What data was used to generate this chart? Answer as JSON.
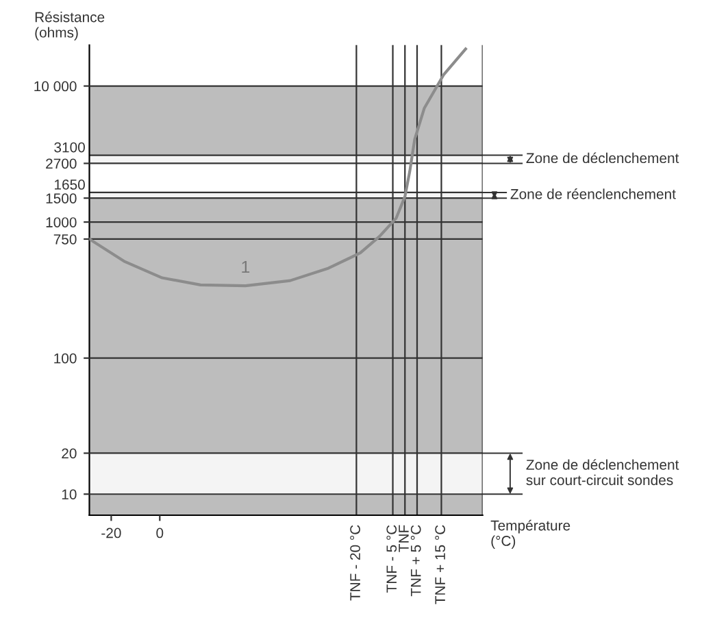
{
  "chart_data": {
    "type": "line",
    "xlabel": "Température\n(°C)",
    "ylabel": "Résistance\n(ohms)",
    "x": [
      -29,
      -14.7,
      1,
      16.8,
      35.3,
      53.7,
      69.5,
      82.6,
      90.5,
      97.4,
      101,
      103,
      105,
      109,
      117,
      126
    ],
    "series": [
      {
        "color": "#8c8c8c",
        "values": [
          750,
          515,
          389,
          345,
          340,
          371,
          458,
          593,
          784,
          1070,
          1540,
          2370,
          4045,
          6890,
          12150,
          18740
        ]
      }
    ],
    "log": "y",
    "xlim": [
      -29,
      133
    ],
    "xticks": [
      -20,
      0
    ],
    "ylim": [
      7,
      20000
    ],
    "yticks": [
      10,
      20,
      100,
      750,
      1000,
      1500,
      2700,
      {
        "value": 10000,
        "label": "10 000"
      }
    ],
    "grid": "y",
    "ref_lines": [
      {
        "axis": "x",
        "value": 81,
        "label": "TNF - 20 °C"
      },
      {
        "axis": "x",
        "value": 96,
        "label": "TNF - 5 °C"
      },
      {
        "axis": "x",
        "value": 101,
        "label": "TNF"
      },
      {
        "axis": "x",
        "value": 106,
        "label": "TNF + 5 °C"
      },
      {
        "axis": "x",
        "value": 116,
        "label": "TNF + 15 °C"
      },
      {
        "axis": "y",
        "value": 1650,
        "label": "1650"
      },
      {
        "axis": "y",
        "value": 3100,
        "label": "3100"
      }
    ],
    "bands": [
      {
        "axis": "y",
        "from": 3100,
        "to": 10000,
        "color": "#bdbdbd"
      },
      {
        "axis": "y",
        "from": 20,
        "to": 1500,
        "color": "#bdbdbd"
      },
      {
        "axis": "y",
        "from": 7,
        "to": 10,
        "color": "#bdbdbd"
      },
      {
        "axis": "y",
        "from": 2700,
        "to": 3100,
        "label": "Zone de déclenchement",
        "color": "#f4f4f4"
      },
      {
        "axis": "y",
        "from": 1500,
        "to": 1650,
        "label": "Zone de réenclenchement",
        "color": "#f4f4f4"
      },
      {
        "axis": "y",
        "from": 10,
        "to": 20,
        "label": "Zone de déclenchement\nsur court-circuit sondes",
        "color": "#f4f4f4"
      }
    ],
    "annotations": [
      {
        "text": "1",
        "x": 35.3,
        "y": 340
      }
    ]
  }
}
